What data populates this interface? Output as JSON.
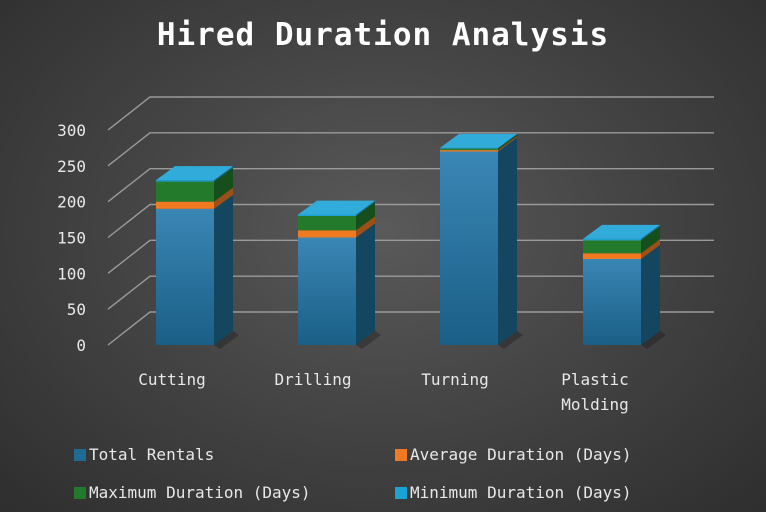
{
  "chart_data": {
    "type": "bar",
    "stacked": true,
    "three_d": true,
    "title": "Hired Duration Analysis",
    "categories": [
      [
        "Cutting"
      ],
      [
        "Drilling"
      ],
      [
        "Turning"
      ],
      [
        "Plastic",
        "Molding"
      ]
    ],
    "series": [
      {
        "name": "Total Rentals",
        "values": [
          190,
          150,
          270,
          120
        ],
        "color": "#1e6b94"
      },
      {
        "name": "Average Duration (Days)",
        "values": [
          10,
          10,
          2,
          8
        ],
        "color": "#f07a22"
      },
      {
        "name": "Maximum Duration (Days)",
        "values": [
          28,
          20,
          2,
          18
        ],
        "color": "#237a2b"
      },
      {
        "name": "Minimum Duration (Days)",
        "values": [
          2,
          2,
          1,
          2
        ],
        "color": "#1aa3d6"
      }
    ],
    "ylim": [
      0,
      300
    ],
    "yticks": [
      0,
      50,
      100,
      150,
      200,
      250,
      300
    ],
    "grid": true,
    "legend_position": "bottom"
  }
}
